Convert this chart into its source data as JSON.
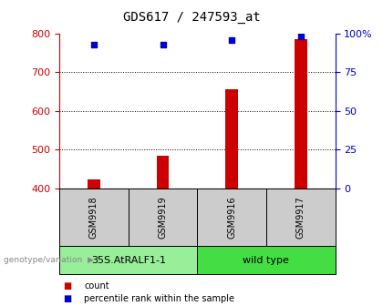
{
  "title": "GDS617 / 247593_at",
  "samples": [
    "GSM9918",
    "GSM9919",
    "GSM9916",
    "GSM9917"
  ],
  "bar_values": [
    423,
    483,
    655,
    785
  ],
  "percentile_values": [
    93,
    93,
    96,
    98
  ],
  "bar_color": "#cc0000",
  "dot_color": "#0000cc",
  "ylim_left": [
    400,
    800
  ],
  "ylim_right": [
    0,
    100
  ],
  "yticks_left": [
    400,
    500,
    600,
    700,
    800
  ],
  "yticks_right": [
    0,
    25,
    50,
    75,
    100
  ],
  "ytick_labels_right": [
    "0",
    "25",
    "50",
    "75",
    "100%"
  ],
  "grid_values": [
    500,
    600,
    700
  ],
  "groups": [
    {
      "label": "35S.AtRALF1-1",
      "color": "#99ee99",
      "samples": [
        0,
        1
      ]
    },
    {
      "label": "wild type",
      "color": "#44dd44",
      "samples": [
        2,
        3
      ]
    }
  ],
  "group_row_label": "genotype/variation",
  "legend": [
    {
      "label": "count",
      "color": "#cc0000"
    },
    {
      "label": "percentile rank within the sample",
      "color": "#0000cc"
    }
  ],
  "bar_width": 0.18,
  "background_color": "#ffffff",
  "left_tick_color": "#cc0000",
  "right_tick_color": "#0000cc"
}
